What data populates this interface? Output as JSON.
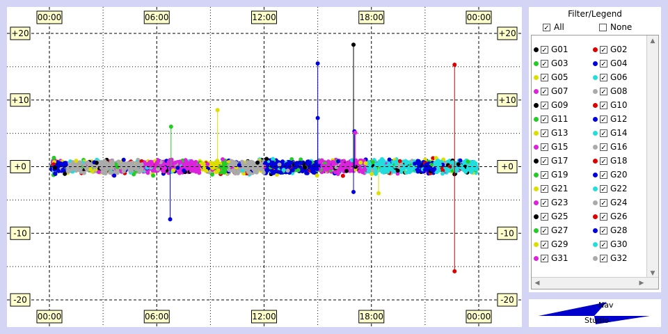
{
  "chart_data": {
    "type": "scatter",
    "title": "",
    "xlabel": "",
    "ylabel": "",
    "x_tick_labels": [
      "00:00",
      "06:00",
      "12:00",
      "18:00",
      "00:00"
    ],
    "x_ticks_hours": [
      0,
      6,
      12,
      18,
      24
    ],
    "y_tick_labels": [
      "+20",
      "+10",
      "+0",
      "-10",
      "-20"
    ],
    "y_ticks": [
      20,
      10,
      0,
      -10,
      -20
    ],
    "xlim_hours": [
      0,
      24
    ],
    "ylim": [
      -20,
      20
    ],
    "grid": "on (dashed major, dotted minor)",
    "band": {
      "from_hour": 0,
      "to_hour": 24,
      "range": [
        -1.5,
        1.5
      ],
      "description_values": "dense residual points near zero"
    },
    "outliers": [
      {
        "hour": 6.8,
        "value": 6.0,
        "series": "G03"
      },
      {
        "hour": 6.75,
        "value": -7.9,
        "series": "G04"
      },
      {
        "hour": 9.4,
        "value": 8.5,
        "series": "G05"
      },
      {
        "hour": 15.0,
        "value": 15.5,
        "series": "G12"
      },
      {
        "hour": 15.0,
        "value": 7.3,
        "series": "G12"
      },
      {
        "hour": 17.0,
        "value": 18.3,
        "series": "G09"
      },
      {
        "hour": 17.05,
        "value": 5.3,
        "series": "G12"
      },
      {
        "hour": 17.1,
        "value": 5.1,
        "series": "G15"
      },
      {
        "hour": 17.0,
        "value": -3.8,
        "series": "G12"
      },
      {
        "hour": 18.4,
        "value": -4.0,
        "series": "G13"
      },
      {
        "hour": 22.65,
        "value": 15.3,
        "series": "G26"
      },
      {
        "hour": 22.65,
        "value": -15.7,
        "series": "G26"
      }
    ],
    "dominant_segments": [
      {
        "from_hour": 0.3,
        "to_hour": 1.0,
        "series": "G20"
      },
      {
        "from_hour": 1.0,
        "to_hour": 5.2,
        "series": "G32"
      },
      {
        "from_hour": 5.2,
        "to_hour": 8.4,
        "series": "G31"
      },
      {
        "from_hour": 8.4,
        "to_hour": 9.6,
        "series": "G29"
      },
      {
        "from_hour": 9.6,
        "to_hour": 10.0,
        "series": "G27"
      },
      {
        "from_hour": 10.0,
        "to_hour": 12.0,
        "series": "G32"
      },
      {
        "from_hour": 12.0,
        "to_hour": 15.0,
        "series": "G28"
      },
      {
        "from_hour": 15.0,
        "to_hour": 17.8,
        "series": "G23"
      },
      {
        "from_hour": 17.8,
        "to_hour": 20.5,
        "series": "G30"
      },
      {
        "from_hour": 20.5,
        "to_hour": 21.5,
        "series": "G20"
      },
      {
        "from_hour": 21.5,
        "to_hour": 24.0,
        "series": "G30"
      }
    ]
  },
  "legend": {
    "title": "Filter/Legend",
    "all_label": "All",
    "none_label": "None",
    "all_checked": true,
    "none_checked": false,
    "entries": [
      {
        "label": "G01",
        "color": "#000000"
      },
      {
        "label": "G02",
        "color": "#dd0000"
      },
      {
        "label": "G03",
        "color": "#22cc22"
      },
      {
        "label": "G04",
        "color": "#0000dd"
      },
      {
        "label": "G05",
        "color": "#dddd00"
      },
      {
        "label": "G06",
        "color": "#22dddd"
      },
      {
        "label": "G07",
        "color": "#dd22dd"
      },
      {
        "label": "G08",
        "color": "#aaaaaa"
      },
      {
        "label": "G09",
        "color": "#000000"
      },
      {
        "label": "G10",
        "color": "#dd0000"
      },
      {
        "label": "G11",
        "color": "#22cc22"
      },
      {
        "label": "G12",
        "color": "#0000dd"
      },
      {
        "label": "G13",
        "color": "#dddd00"
      },
      {
        "label": "G14",
        "color": "#22dddd"
      },
      {
        "label": "G15",
        "color": "#dd22dd"
      },
      {
        "label": "G16",
        "color": "#aaaaaa"
      },
      {
        "label": "G17",
        "color": "#000000"
      },
      {
        "label": "G18",
        "color": "#dd0000"
      },
      {
        "label": "G19",
        "color": "#22cc22"
      },
      {
        "label": "G20",
        "color": "#0000dd"
      },
      {
        "label": "G21",
        "color": "#dddd00"
      },
      {
        "label": "G22",
        "color": "#22dddd"
      },
      {
        "label": "G23",
        "color": "#dd22dd"
      },
      {
        "label": "G24",
        "color": "#aaaaaa"
      },
      {
        "label": "G25",
        "color": "#000000"
      },
      {
        "label": "G26",
        "color": "#dd0000"
      },
      {
        "label": "G27",
        "color": "#22cc22"
      },
      {
        "label": "G28",
        "color": "#0000dd"
      },
      {
        "label": "G29",
        "color": "#dddd00"
      },
      {
        "label": "G30",
        "color": "#22dddd"
      },
      {
        "label": "G31",
        "color": "#dd22dd"
      },
      {
        "label": "G32",
        "color": "#aaaaaa"
      }
    ]
  },
  "brand": {
    "line1": "Nav",
    "line2": "Studio"
  },
  "colors": {
    "background": "#d4d4f4",
    "tick_label_bg": "#ffffcc",
    "logo": "#0000cc"
  }
}
